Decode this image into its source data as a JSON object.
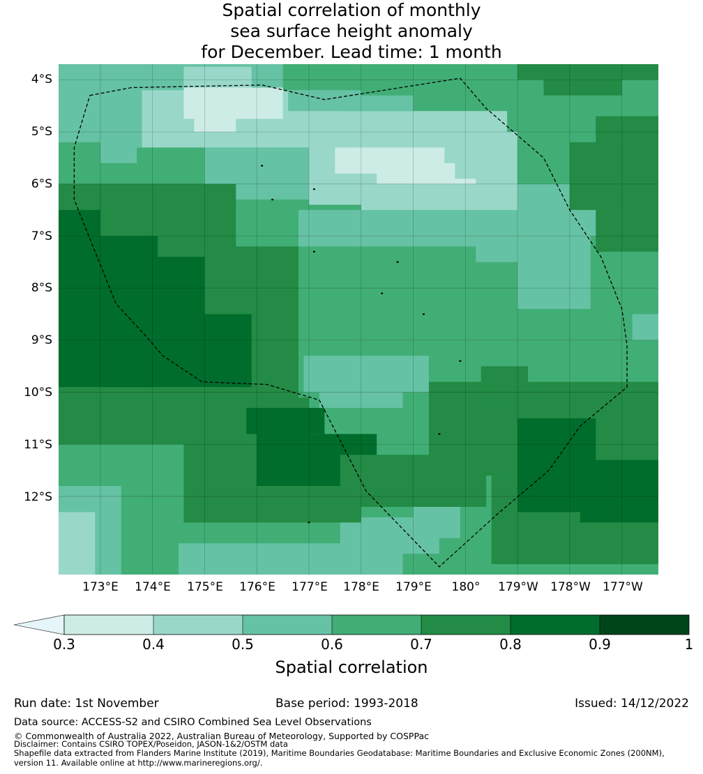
{
  "title": {
    "line1": "Spatial correlation of monthly",
    "line2": "sea surface height anomaly",
    "line3": "for December. Lead time: 1 month"
  },
  "colors": {
    "c03": "#cdece5",
    "c04": "#99d8c9",
    "c05": "#66c2a4",
    "c06": "#41ae76",
    "c07": "#238b45",
    "c08": "#006d2c",
    "c09": "#00441b",
    "under": "#e5f5f9"
  },
  "map": {
    "lat_labels": [
      "4°S",
      "5°S",
      "6°S",
      "7°S",
      "8°S",
      "9°S",
      "10°S",
      "11°S",
      "12°S"
    ],
    "lon_labels": [
      "173°E",
      "174°E",
      "175°E",
      "176°E",
      "177°E",
      "178°E",
      "179°E",
      "180°",
      "179°W",
      "178°W",
      "177°W"
    ],
    "lat_range": [
      -13.5,
      -3.7
    ],
    "lon_range": [
      172.2,
      183.7
    ],
    "eez_boundary": [
      [
        172.8,
        -4.3
      ],
      [
        173.6,
        -4.15
      ],
      [
        176.1,
        -4.1
      ],
      [
        177.3,
        -4.38
      ],
      [
        179.9,
        -3.97
      ],
      [
        180.4,
        -4.55
      ],
      [
        181.5,
        -5.5
      ],
      [
        182.0,
        -6.5
      ],
      [
        182.6,
        -7.4
      ],
      [
        183.0,
        -8.4
      ],
      [
        183.1,
        -9.1
      ],
      [
        183.1,
        -9.9
      ],
      [
        182.2,
        -10.65
      ],
      [
        181.6,
        -11.5
      ],
      [
        180.6,
        -12.35
      ],
      [
        179.5,
        -13.35
      ],
      [
        178.1,
        -11.9
      ],
      [
        177.2,
        -10.15
      ],
      [
        176.2,
        -9.85
      ],
      [
        174.95,
        -9.8
      ],
      [
        174.2,
        -9.3
      ],
      [
        173.9,
        -8.95
      ],
      [
        173.3,
        -8.3
      ],
      [
        172.9,
        -7.3
      ],
      [
        172.5,
        -6.3
      ],
      [
        172.5,
        -5.3
      ],
      [
        172.8,
        -4.3
      ]
    ],
    "islands": [
      [
        176.1,
        -5.65
      ],
      [
        176.3,
        -6.3
      ],
      [
        177.1,
        -7.3
      ],
      [
        177.1,
        -6.1
      ],
      [
        178.7,
        -7.5
      ],
      [
        178.4,
        -8.1
      ],
      [
        179.2,
        -8.5
      ],
      [
        179.9,
        -9.4
      ],
      [
        179.5,
        -10.8
      ],
      [
        177.0,
        -12.5
      ]
    ],
    "regions": [
      {
        "v": "c06",
        "lon": [
          172.2,
          183.7
        ],
        "lat": [
          -13.5,
          -3.7
        ]
      },
      {
        "v": "c05",
        "lon": [
          172.2,
          176.5
        ],
        "lat": [
          -5.3,
          -3.7
        ]
      },
      {
        "v": "c05",
        "lon": [
          172.2,
          173.7
        ],
        "lat": [
          -5.6,
          -4.3
        ]
      },
      {
        "v": "c04",
        "lon": [
          174.6,
          175.9
        ],
        "lat": [
          -4.95,
          -3.75
        ]
      },
      {
        "v": "c04",
        "lon": [
          173.8,
          177.6
        ],
        "lat": [
          -5.3,
          -4.2
        ]
      },
      {
        "v": "c04",
        "lon": [
          177.0,
          180.8
        ],
        "lat": [
          -5.4,
          -4.6
        ]
      },
      {
        "v": "c05",
        "lon": [
          176.6,
          179.0
        ],
        "lat": [
          -4.6,
          -4.2
        ]
      },
      {
        "v": "c03",
        "lon": [
          174.6,
          176.5
        ],
        "lat": [
          -4.75,
          -4.15
        ]
      },
      {
        "v": "c03",
        "lon": [
          174.8,
          175.6
        ],
        "lat": [
          -5.0,
          -4.7
        ]
      },
      {
        "v": "c06",
        "lon": [
          178.0,
          183.7
        ],
        "lat": [
          -4.3,
          -3.7
        ]
      },
      {
        "v": "c07",
        "lon": [
          181.0,
          183.7
        ],
        "lat": [
          -4.0,
          -3.7
        ]
      },
      {
        "v": "c07",
        "lon": [
          181.5,
          183.0
        ],
        "lat": [
          -4.3,
          -4.0
        ]
      },
      {
        "v": "c05",
        "lon": [
          175.0,
          178.0
        ],
        "lat": [
          -6.3,
          -5.3
        ]
      },
      {
        "v": "c04",
        "lon": [
          177.0,
          181.0
        ],
        "lat": [
          -6.4,
          -5.0
        ]
      },
      {
        "v": "c03",
        "lon": [
          177.5,
          179.6
        ],
        "lat": [
          -5.8,
          -5.3
        ]
      },
      {
        "v": "c03",
        "lon": [
          178.3,
          179.8
        ],
        "lat": [
          -6.0,
          -5.6
        ]
      },
      {
        "v": "c03",
        "lon": [
          179.0,
          180.2
        ],
        "lat": [
          -6.3,
          -5.9
        ]
      },
      {
        "v": "c04",
        "lon": [
          178.0,
          181.0
        ],
        "lat": [
          -7.0,
          -6.0
        ]
      },
      {
        "v": "c05",
        "lon": [
          176.8,
          181.5
        ],
        "lat": [
          -7.2,
          -6.5
        ]
      },
      {
        "v": "c05",
        "lon": [
          181.0,
          182.6
        ],
        "lat": [
          -7.0,
          -6.0
        ]
      },
      {
        "v": "c05",
        "lon": [
          181.0,
          182.4
        ],
        "lat": [
          -8.4,
          -7.0
        ]
      },
      {
        "v": "c05",
        "lon": [
          180.2,
          181.2
        ],
        "lat": [
          -7.5,
          -6.9
        ]
      },
      {
        "v": "c05",
        "lon": [
          176.9,
          179.3
        ],
        "lat": [
          -10.0,
          -9.3
        ]
      },
      {
        "v": "c05",
        "lon": [
          177.2,
          178.8
        ],
        "lat": [
          -10.3,
          -9.8
        ]
      },
      {
        "v": "c05",
        "lon": [
          172.2,
          173.4
        ],
        "lat": [
          -13.5,
          -11.7
        ]
      },
      {
        "v": "c04",
        "lon": [
          172.2,
          172.9
        ],
        "lat": [
          -13.5,
          -12.3
        ]
      },
      {
        "v": "c05",
        "lon": [
          174.5,
          178.8
        ],
        "lat": [
          -13.5,
          -12.9
        ]
      },
      {
        "v": "c05",
        "lon": [
          177.6,
          179.5
        ],
        "lat": [
          -13.1,
          -12.4
        ]
      },
      {
        "v": "c05",
        "lon": [
          179.0,
          179.9
        ],
        "lat": [
          -12.8,
          -12.2
        ]
      },
      {
        "v": "c05",
        "lon": [
          183.2,
          183.7
        ],
        "lat": [
          -9.0,
          -8.5
        ]
      },
      {
        "v": "c06",
        "lon": [
          172.2,
          173.0
        ],
        "lat": [
          -6.0,
          -5.2
        ]
      },
      {
        "v": "c07",
        "lon": [
          172.2,
          175.6
        ],
        "lat": [
          -7.3,
          -6.0
        ]
      },
      {
        "v": "c07",
        "lon": [
          172.2,
          176.8
        ],
        "lat": [
          -10.6,
          -7.2
        ]
      },
      {
        "v": "c07",
        "lon": [
          172.2,
          177.0
        ],
        "lat": [
          -11.5,
          -10.1
        ]
      },
      {
        "v": "c06",
        "lon": [
          172.2,
          174.6
        ],
        "lat": [
          -11.8,
          -11.0
        ]
      },
      {
        "v": "c07",
        "lon": [
          174.6,
          178.0
        ],
        "lat": [
          -12.5,
          -11.0
        ]
      },
      {
        "v": "c08",
        "lon": [
          172.2,
          174.1
        ],
        "lat": [
          -9.9,
          -7.0
        ]
      },
      {
        "v": "c08",
        "lon": [
          172.2,
          173.0
        ],
        "lat": [
          -7.0,
          -6.5
        ]
      },
      {
        "v": "c08",
        "lon": [
          173.0,
          175.9
        ],
        "lat": [
          -9.9,
          -8.5
        ]
      },
      {
        "v": "c08",
        "lon": [
          173.0,
          175.0
        ],
        "lat": [
          -9.5,
          -7.4
        ]
      },
      {
        "v": "c08",
        "lon": [
          175.8,
          177.3
        ],
        "lat": [
          -10.8,
          -10.3
        ]
      },
      {
        "v": "c08",
        "lon": [
          176.0,
          178.3
        ],
        "lat": [
          -11.8,
          -10.8
        ]
      },
      {
        "v": "c07",
        "lon": [
          179.3,
          183.7
        ],
        "lat": [
          -11.6,
          -9.8
        ]
      },
      {
        "v": "c07",
        "lon": [
          180.3,
          181.2
        ],
        "lat": [
          -10.2,
          -9.5
        ]
      },
      {
        "v": "c07",
        "lon": [
          180.5,
          183.7
        ],
        "lat": [
          -13.3,
          -11.6
        ]
      },
      {
        "v": "c07",
        "lon": [
          177.6,
          180.4
        ],
        "lat": [
          -12.2,
          -11.2
        ]
      },
      {
        "v": "c08",
        "lon": [
          181.0,
          182.5
        ],
        "lat": [
          -12.3,
          -10.5
        ]
      },
      {
        "v": "c08",
        "lon": [
          182.2,
          183.7
        ],
        "lat": [
          -12.5,
          -11.3
        ]
      },
      {
        "v": "c07",
        "lon": [
          182.5,
          183.7
        ],
        "lat": [
          -7.3,
          -4.7
        ]
      },
      {
        "v": "c07",
        "lon": [
          182.0,
          183.0
        ],
        "lat": [
          -6.5,
          -5.2
        ]
      }
    ]
  },
  "colorbar": {
    "ticks": [
      "0.3",
      "0.4",
      "0.5",
      "0.6",
      "0.7",
      "0.8",
      "0.9",
      "1"
    ],
    "label": "Spatial correlation"
  },
  "footer": {
    "run_date": "Run date: 1st November",
    "base_period": "Base period: 1993-2018",
    "issued": "Issued: 14/12/2022",
    "data_source": "Data source: ACCESS-S2 and CSIRO Combined Sea Level Observations",
    "copyright": "© Commonwealth of Australia 2022, Australian Bureau of Meteorology, Supported by COSPPac",
    "disclaimer": "Disclaimer: Contains CSIRO TOPEX/Poseidon, JASON-1&2/OSTM data",
    "shapefile1": "Shapefile data extracted from Flanders Marine Institute (2019), Maritime Boundaries Geodatabase: Maritime Boundaries and Exclusive Economic Zones (200NM),",
    "shapefile2": "version 11. Available online at http://www.marineregions.org/."
  }
}
